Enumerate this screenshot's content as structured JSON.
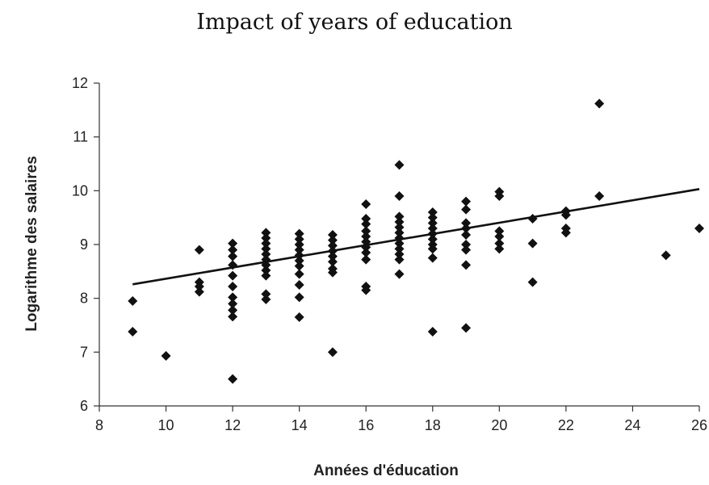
{
  "chart_data": {
    "type": "scatter",
    "title": "Impact of years of education",
    "xlabel": "Années d'éducation",
    "ylabel": "Logarithme des salaires",
    "xlim": [
      8,
      26
    ],
    "ylim": [
      6,
      12
    ],
    "xticks": [
      8,
      10,
      12,
      14,
      16,
      18,
      20,
      22,
      24,
      26
    ],
    "yticks": [
      6,
      7,
      8,
      9,
      10,
      11,
      12
    ],
    "grid": false,
    "legend": "none",
    "points": [
      {
        "x": 9,
        "y": 7.95
      },
      {
        "x": 9,
        "y": 7.38
      },
      {
        "x": 10,
        "y": 6.93
      },
      {
        "x": 11,
        "y": 8.9
      },
      {
        "x": 11,
        "y": 8.3
      },
      {
        "x": 11,
        "y": 8.22
      },
      {
        "x": 11,
        "y": 8.12
      },
      {
        "x": 12,
        "y": 9.02
      },
      {
        "x": 12,
        "y": 8.9
      },
      {
        "x": 12,
        "y": 8.78
      },
      {
        "x": 12,
        "y": 8.62
      },
      {
        "x": 12,
        "y": 8.42
      },
      {
        "x": 12,
        "y": 8.22
      },
      {
        "x": 12,
        "y": 8.02
      },
      {
        "x": 12,
        "y": 7.9
      },
      {
        "x": 12,
        "y": 7.78
      },
      {
        "x": 12,
        "y": 7.66
      },
      {
        "x": 12,
        "y": 6.5
      },
      {
        "x": 13,
        "y": 9.22
      },
      {
        "x": 13,
        "y": 9.12
      },
      {
        "x": 13,
        "y": 9.02
      },
      {
        "x": 13,
        "y": 8.92
      },
      {
        "x": 13,
        "y": 8.82
      },
      {
        "x": 13,
        "y": 8.72
      },
      {
        "x": 13,
        "y": 8.62
      },
      {
        "x": 13,
        "y": 8.52
      },
      {
        "x": 13,
        "y": 8.42
      },
      {
        "x": 13,
        "y": 8.08
      },
      {
        "x": 13,
        "y": 7.98
      },
      {
        "x": 14,
        "y": 9.2
      },
      {
        "x": 14,
        "y": 9.1
      },
      {
        "x": 14,
        "y": 9.0
      },
      {
        "x": 14,
        "y": 8.9
      },
      {
        "x": 14,
        "y": 8.8
      },
      {
        "x": 14,
        "y": 8.7
      },
      {
        "x": 14,
        "y": 8.6
      },
      {
        "x": 14,
        "y": 8.45
      },
      {
        "x": 14,
        "y": 8.25
      },
      {
        "x": 14,
        "y": 8.02
      },
      {
        "x": 14,
        "y": 7.65
      },
      {
        "x": 15,
        "y": 9.18
      },
      {
        "x": 15,
        "y": 9.08
      },
      {
        "x": 15,
        "y": 8.98
      },
      {
        "x": 15,
        "y": 8.88
      },
      {
        "x": 15,
        "y": 8.78
      },
      {
        "x": 15,
        "y": 8.68
      },
      {
        "x": 15,
        "y": 8.55
      },
      {
        "x": 15,
        "y": 8.48
      },
      {
        "x": 15,
        "y": 7.0
      },
      {
        "x": 16,
        "y": 9.75
      },
      {
        "x": 16,
        "y": 9.48
      },
      {
        "x": 16,
        "y": 9.38
      },
      {
        "x": 16,
        "y": 9.25
      },
      {
        "x": 16,
        "y": 9.15
      },
      {
        "x": 16,
        "y": 9.05
      },
      {
        "x": 16,
        "y": 8.95
      },
      {
        "x": 16,
        "y": 8.85
      },
      {
        "x": 16,
        "y": 8.72
      },
      {
        "x": 16,
        "y": 8.22
      },
      {
        "x": 16,
        "y": 8.15
      },
      {
        "x": 17,
        "y": 10.48
      },
      {
        "x": 17,
        "y": 9.9
      },
      {
        "x": 17,
        "y": 9.52
      },
      {
        "x": 17,
        "y": 9.42
      },
      {
        "x": 17,
        "y": 9.32
      },
      {
        "x": 17,
        "y": 9.22
      },
      {
        "x": 17,
        "y": 9.12
      },
      {
        "x": 17,
        "y": 9.02
      },
      {
        "x": 17,
        "y": 8.92
      },
      {
        "x": 17,
        "y": 8.82
      },
      {
        "x": 17,
        "y": 8.72
      },
      {
        "x": 17,
        "y": 8.45
      },
      {
        "x": 18,
        "y": 9.6
      },
      {
        "x": 18,
        "y": 9.5
      },
      {
        "x": 18,
        "y": 9.4
      },
      {
        "x": 18,
        "y": 9.3
      },
      {
        "x": 18,
        "y": 9.2
      },
      {
        "x": 18,
        "y": 9.1
      },
      {
        "x": 18,
        "y": 9.0
      },
      {
        "x": 18,
        "y": 8.92
      },
      {
        "x": 18,
        "y": 8.75
      },
      {
        "x": 18,
        "y": 7.38
      },
      {
        "x": 19,
        "y": 9.8
      },
      {
        "x": 19,
        "y": 9.65
      },
      {
        "x": 19,
        "y": 9.4
      },
      {
        "x": 19,
        "y": 9.3
      },
      {
        "x": 19,
        "y": 9.18
      },
      {
        "x": 19,
        "y": 9.0
      },
      {
        "x": 19,
        "y": 8.9
      },
      {
        "x": 19,
        "y": 8.62
      },
      {
        "x": 19,
        "y": 7.45
      },
      {
        "x": 20,
        "y": 9.98
      },
      {
        "x": 20,
        "y": 9.9
      },
      {
        "x": 20,
        "y": 9.25
      },
      {
        "x": 20,
        "y": 9.15
      },
      {
        "x": 20,
        "y": 9.02
      },
      {
        "x": 20,
        "y": 8.92
      },
      {
        "x": 21,
        "y": 9.48
      },
      {
        "x": 21,
        "y": 9.02
      },
      {
        "x": 21,
        "y": 8.3
      },
      {
        "x": 22,
        "y": 9.62
      },
      {
        "x": 22,
        "y": 9.55
      },
      {
        "x": 22,
        "y": 9.3
      },
      {
        "x": 22,
        "y": 9.22
      },
      {
        "x": 23,
        "y": 11.62
      },
      {
        "x": 23,
        "y": 9.9
      },
      {
        "x": 25,
        "y": 8.8
      },
      {
        "x": 26,
        "y": 9.3
      }
    ],
    "trend_line": {
      "x": [
        9,
        26
      ],
      "y": [
        8.26,
        10.03
      ]
    }
  }
}
